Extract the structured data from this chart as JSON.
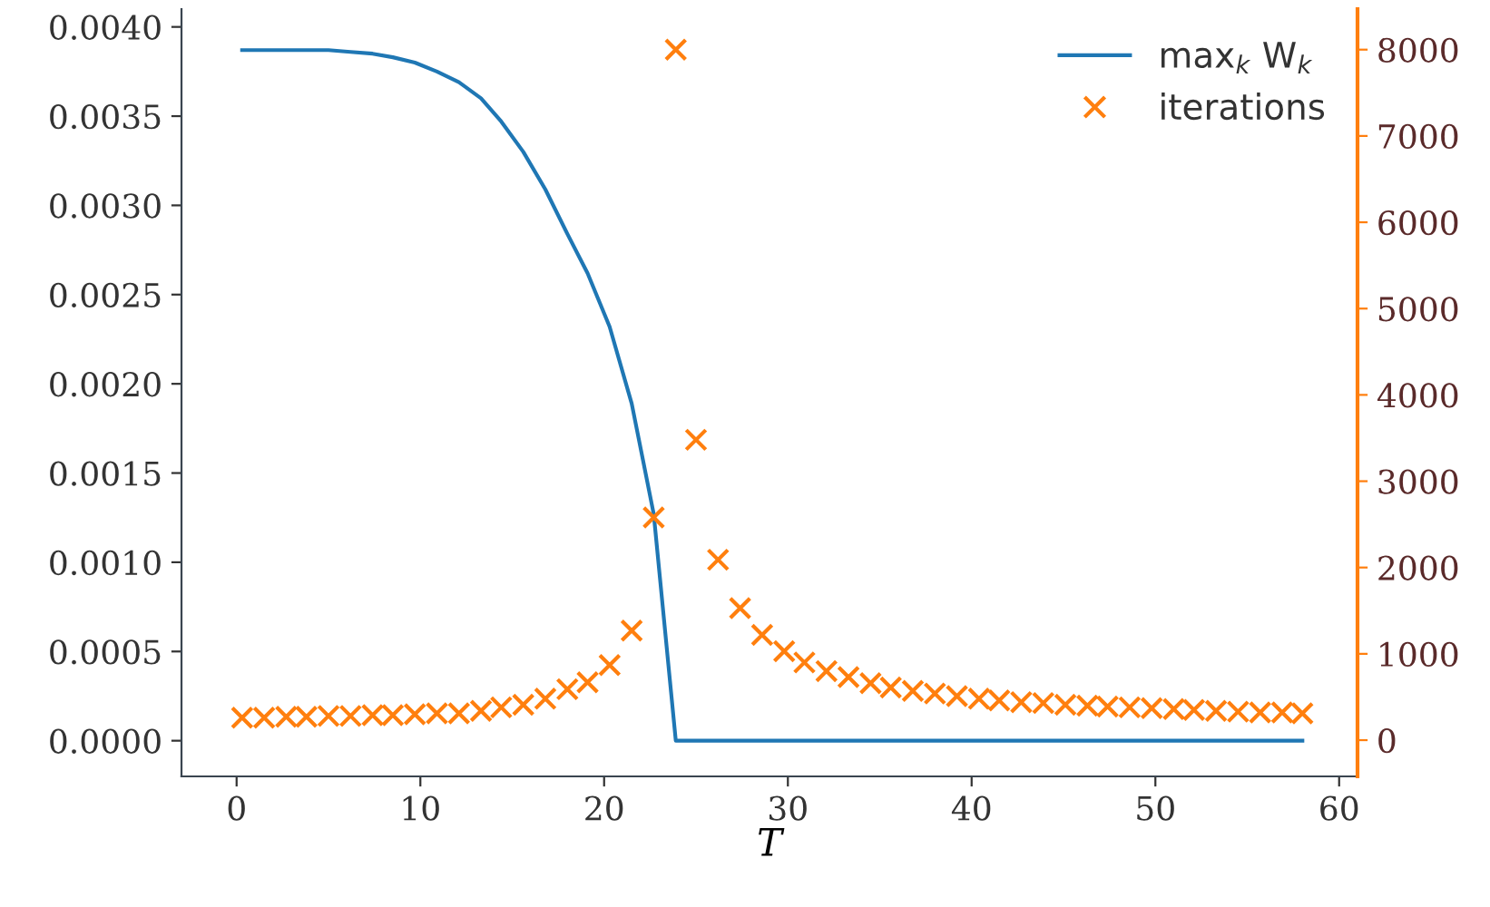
{
  "chart_data": {
    "type": "line",
    "xlabel": "T",
    "xlim": [
      -3,
      61
    ],
    "xticks": [
      0,
      10,
      20,
      30,
      40,
      50,
      60
    ],
    "ylim": [
      -0.0002,
      0.0041
    ],
    "yticks": [
      {
        "value": 0,
        "label": "0.0000"
      },
      {
        "value": 0.0005,
        "label": "0.0005"
      },
      {
        "value": 0.001,
        "label": "0.0010"
      },
      {
        "value": 0.0015,
        "label": "0.0015"
      },
      {
        "value": 0.002,
        "label": "0.0020"
      },
      {
        "value": 0.0025,
        "label": "0.0025"
      },
      {
        "value": 0.003,
        "label": "0.0030"
      },
      {
        "value": 0.0035,
        "label": "0.0035"
      },
      {
        "value": 0.004,
        "label": "0.0040"
      }
    ],
    "y2lim": [
      -420,
      8470
    ],
    "y2ticks": [
      0,
      1000,
      2000,
      3000,
      4000,
      5000,
      6000,
      7000,
      8000
    ],
    "grid": false,
    "legend": "top right",
    "series": [
      {
        "name": "max$_{k}$ W$_{k}$",
        "color": "#1f77b4",
        "marker": "none",
        "line_style": "solid",
        "x": [
          0.3,
          1.5,
          2.7,
          3.8,
          5.0,
          6.2,
          7.4,
          8.5,
          9.7,
          10.9,
          12.1,
          13.3,
          14.4,
          15.6,
          16.8,
          18.0,
          19.1,
          20.3,
          21.5,
          22.7,
          23.9,
          25.0,
          26.2,
          27.4,
          28.6,
          29.8,
          30.9,
          32.1,
          33.3,
          34.5,
          35.6,
          36.8,
          38.0,
          39.2,
          40.4,
          41.5,
          42.7,
          43.9,
          45.1,
          46.3,
          47.4,
          48.6,
          49.8,
          51.0,
          52.1,
          53.3,
          54.5,
          55.7,
          56.9,
          58.0
        ],
        "values": [
          0.00387,
          0.00387,
          0.00387,
          0.00387,
          0.00387,
          0.00386,
          0.00385,
          0.00383,
          0.0038,
          0.00375,
          0.00369,
          0.0036,
          0.00347,
          0.0033,
          0.00309,
          0.00284,
          0.00262,
          0.00232,
          0.00189,
          0.00127,
          0,
          0,
          0,
          0,
          0,
          0,
          0,
          0,
          0,
          0,
          0,
          0,
          0,
          0,
          0,
          0,
          0,
          0,
          0,
          0,
          0,
          0,
          0,
          0,
          0,
          0,
          0,
          0,
          0,
          0
        ]
      },
      {
        "name": "iterations",
        "type": "scatter",
        "axis": "y2",
        "color": "#ff7f0e",
        "marker": "cross",
        "x": [
          0.3,
          1.5,
          2.7,
          3.8,
          5.0,
          6.2,
          7.4,
          8.5,
          9.7,
          10.9,
          12.1,
          13.3,
          14.4,
          15.6,
          16.8,
          18.0,
          19.1,
          20.3,
          21.5,
          22.7,
          23.9,
          25.0,
          26.2,
          27.4,
          28.6,
          29.8,
          30.9,
          32.1,
          33.3,
          34.5,
          35.6,
          36.8,
          38.0,
          39.2,
          40.4,
          41.5,
          42.7,
          43.9,
          45.1,
          46.3,
          47.4,
          48.6,
          49.8,
          51.0,
          52.1,
          53.3,
          54.5,
          55.7,
          56.9,
          58.0
        ],
        "values": [
          260,
          260,
          270,
          270,
          280,
          280,
          290,
          290,
          300,
          310,
          310,
          340,
          380,
          410,
          480,
          590,
          670,
          870,
          1270,
          2580,
          8000,
          3480,
          2090,
          1530,
          1220,
          1030,
          900,
          800,
          730,
          660,
          610,
          570,
          540,
          510,
          480,
          460,
          440,
          430,
          410,
          400,
          390,
          380,
          370,
          360,
          350,
          340,
          330,
          320,
          320,
          310
        ]
      }
    ]
  }
}
